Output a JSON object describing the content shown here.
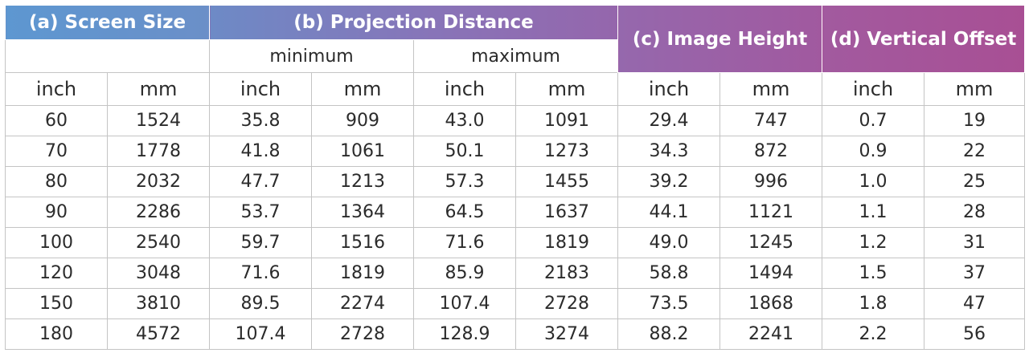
{
  "table": {
    "headers": {
      "screen_size": "(a) Screen Size",
      "projection_distance": "(b) Projection Distance",
      "image_height": "(c) Image Height",
      "vertical_offset": "(d) Vertical Offset",
      "minimum": "minimum",
      "maximum": "maximum"
    },
    "units": [
      "inch",
      "mm",
      "inch",
      "mm",
      "inch",
      "mm",
      "inch",
      "mm",
      "inch",
      "mm"
    ],
    "rows": [
      [
        "60",
        "1524",
        "35.8",
        "909",
        "43.0",
        "1091",
        "29.4",
        "747",
        "0.7",
        "19"
      ],
      [
        "70",
        "1778",
        "41.8",
        "1061",
        "50.1",
        "1273",
        "34.3",
        "872",
        "0.9",
        "22"
      ],
      [
        "80",
        "2032",
        "47.7",
        "1213",
        "57.3",
        "1455",
        "39.2",
        "996",
        "1.0",
        "25"
      ],
      [
        "90",
        "2286",
        "53.7",
        "1364",
        "64.5",
        "1637",
        "44.1",
        "1121",
        "1.1",
        "28"
      ],
      [
        "100",
        "2540",
        "59.7",
        "1516",
        "71.6",
        "1819",
        "49.0",
        "1245",
        "1.2",
        "31"
      ],
      [
        "120",
        "3048",
        "71.6",
        "1819",
        "85.9",
        "2183",
        "58.8",
        "1494",
        "1.5",
        "37"
      ],
      [
        "150",
        "3810",
        "89.5",
        "2274",
        "107.4",
        "2728",
        "73.5",
        "1868",
        "1.8",
        "47"
      ],
      [
        "180",
        "4572",
        "107.4",
        "2728",
        "128.9",
        "3274",
        "88.2",
        "2241",
        "2.2",
        "56"
      ]
    ]
  }
}
